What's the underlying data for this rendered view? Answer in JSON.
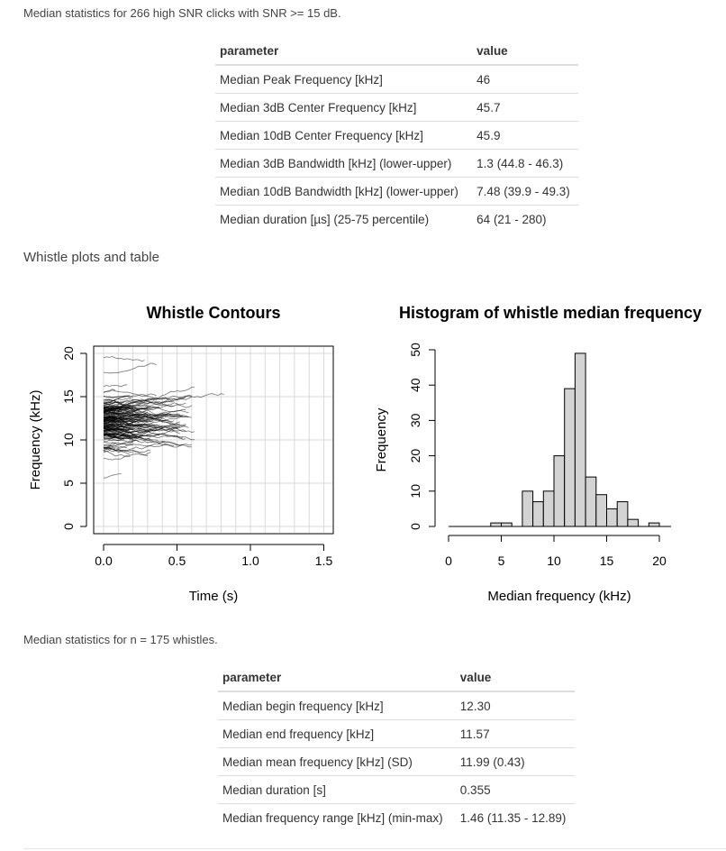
{
  "click_stats": {
    "intro": "Median statistics for 266 high SNR clicks with SNR >= 15 dB.",
    "headers": [
      "parameter",
      "value"
    ],
    "rows": [
      [
        "Median Peak Frequency [kHz]",
        "46"
      ],
      [
        "Median 3dB Center Frequency [kHz]",
        "45.7"
      ],
      [
        "Median 10dB Center Frequency [kHz]",
        "45.9"
      ],
      [
        "Median 3dB Bandwidth [kHz] (lower-upper)",
        "1.3 (44.8 - 46.3)"
      ],
      [
        "Median 10dB Bandwidth [kHz] (lower-upper)",
        "7.48 (39.9 - 49.3)"
      ],
      [
        "Median duration [µs] (25-75 percentile)",
        "64 (21 - 280)"
      ]
    ]
  },
  "whistle_section": {
    "heading": "Whistle plots and table"
  },
  "chart_data": [
    {
      "type": "line",
      "title": "Whistle Contours",
      "xlabel": "Time (s)",
      "ylabel": "Frequency (kHz)",
      "xlim": [
        0,
        1.5
      ],
      "ylim": [
        0,
        20
      ],
      "x_ticks": [
        "0.0",
        "0.5",
        "1.0",
        "1.5"
      ],
      "y_ticks": [
        "0",
        "5",
        "10",
        "15",
        "20"
      ],
      "grid": true,
      "series_count": 175,
      "series_color": "#000000"
    },
    {
      "type": "bar",
      "title": "Histogram of whistle median frequency",
      "xlabel": "Median frequency (kHz)",
      "ylabel": "Frequency",
      "xlim": [
        0,
        20
      ],
      "ylim": [
        0,
        50
      ],
      "x_ticks": [
        "0",
        "5",
        "10",
        "15",
        "20"
      ],
      "y_ticks": [
        "0",
        "10",
        "20",
        "30",
        "40",
        "50"
      ],
      "bin_width": 1,
      "bins": [
        {
          "start": 0,
          "count": 0
        },
        {
          "start": 1,
          "count": 0
        },
        {
          "start": 2,
          "count": 0
        },
        {
          "start": 3,
          "count": 0
        },
        {
          "start": 4,
          "count": 1
        },
        {
          "start": 5,
          "count": 1
        },
        {
          "start": 6,
          "count": 0
        },
        {
          "start": 7,
          "count": 10
        },
        {
          "start": 8,
          "count": 7
        },
        {
          "start": 9,
          "count": 10
        },
        {
          "start": 10,
          "count": 20
        },
        {
          "start": 11,
          "count": 39
        },
        {
          "start": 12,
          "count": 49
        },
        {
          "start": 13,
          "count": 14
        },
        {
          "start": 14,
          "count": 9
        },
        {
          "start": 15,
          "count": 5
        },
        {
          "start": 16,
          "count": 7
        },
        {
          "start": 17,
          "count": 2
        },
        {
          "start": 18,
          "count": 0
        },
        {
          "start": 19,
          "count": 1
        }
      ],
      "bar_fill": "#d3d3d3",
      "bar_stroke": "#000000"
    }
  ],
  "whistle_stats": {
    "intro": "Median statistics for n = 175 whistles.",
    "headers": [
      "parameter",
      "value"
    ],
    "rows": [
      [
        "Median begin frequency [kHz]",
        "12.30"
      ],
      [
        "Median end frequency [kHz]",
        "11.57"
      ],
      [
        "Median mean frequency [kHz] (SD)",
        "11.99 (0.43)"
      ],
      [
        "Median duration [s]",
        "0.355"
      ],
      [
        "Median frequency range [kHz] (min-max)",
        "1.46 (11.35 - 12.89)"
      ]
    ]
  }
}
